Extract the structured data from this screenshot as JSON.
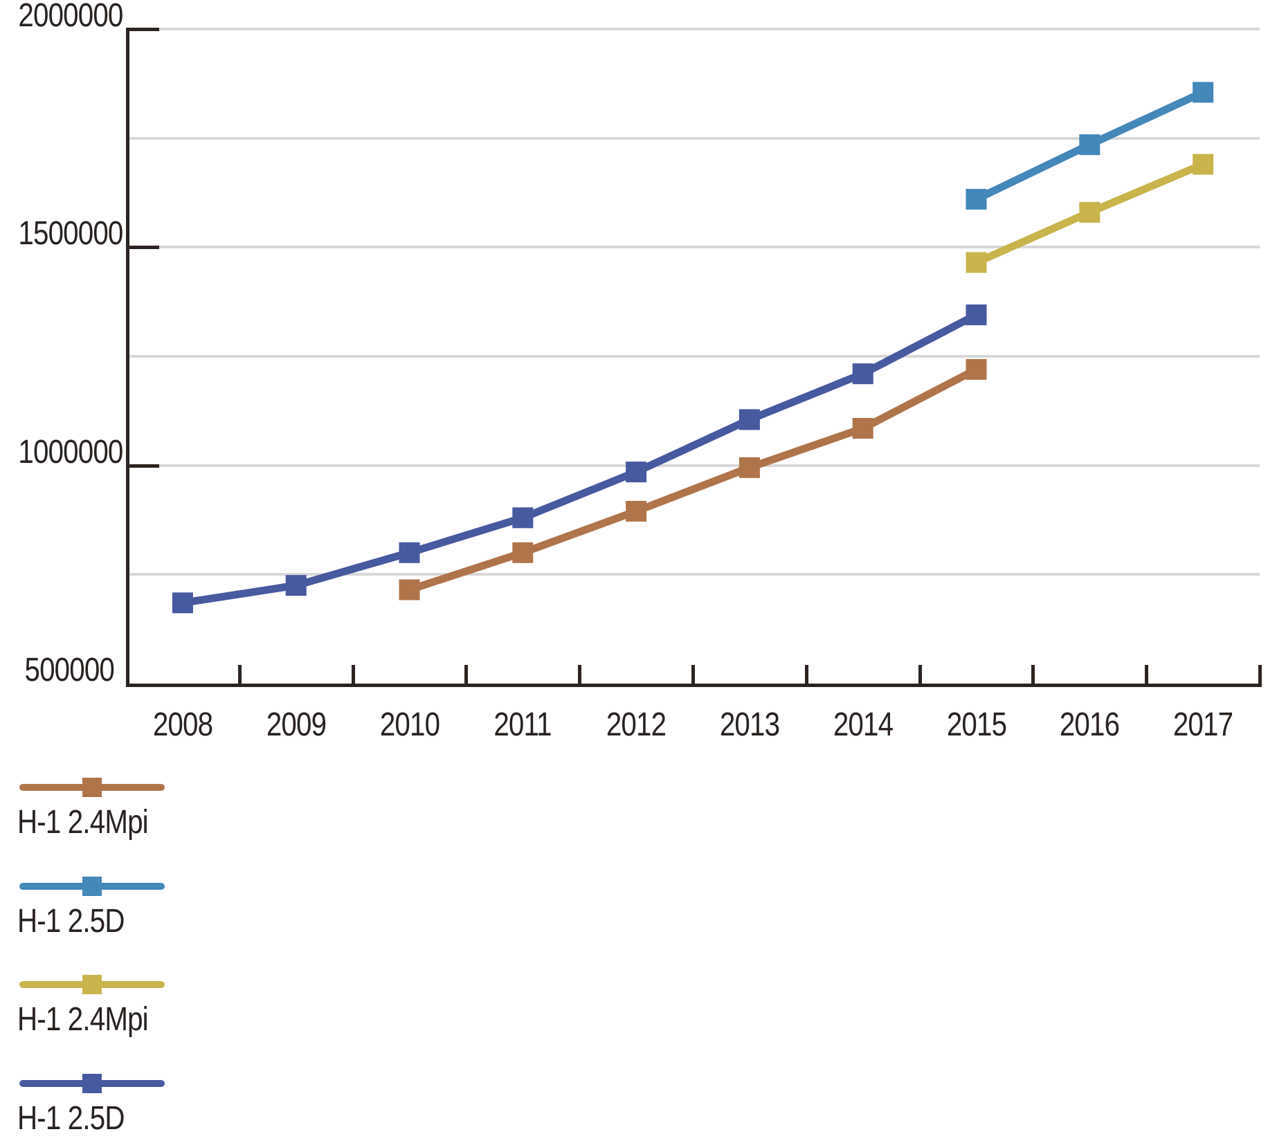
{
  "colors": {
    "background": "#ffffff",
    "axis": "#2b2420",
    "text": "#282220",
    "grid": "#d8d8d8"
  },
  "chart_data": {
    "type": "line",
    "title": "",
    "xlabel": "",
    "ylabel": "",
    "grid": true,
    "legend_position": "bottom-left",
    "marker": "square",
    "categories": [
      "2008",
      "2009",
      "2010",
      "2011",
      "2012",
      "2013",
      "2014",
      "2015",
      "2016",
      "2017"
    ],
    "ylim": [
      500000,
      2000000
    ],
    "y_gridline_step": 250000,
    "y_ticks": [
      {
        "value": 500000,
        "label": "500000"
      },
      {
        "value": 1000000,
        "label": "1000000"
      },
      {
        "value": 1500000,
        "label": "1500000"
      },
      {
        "value": 2000000,
        "label": "2000000"
      }
    ],
    "series": [
      {
        "name": "H-1 2.4Mpi",
        "color": "#b0744a",
        "points": {
          "2010": 715000,
          "2011": 800000,
          "2012": 895000,
          "2013": 995000,
          "2014": 1085000,
          "2015": 1220000
        }
      },
      {
        "name": "H-1 2.5D",
        "color": "#4487b9",
        "points": {
          "2015": 1610000,
          "2016": 1735000,
          "2017": 1855000
        }
      },
      {
        "name": "H-1 2.4Mpi",
        "color": "#c9b44c",
        "points": {
          "2015": 1465000,
          "2016": 1580000,
          "2017": 1690000
        }
      },
      {
        "name": "H-1 2.5D",
        "color": "#47599f",
        "points": {
          "2008": 685000,
          "2009": 725000,
          "2010": 800000,
          "2011": 880000,
          "2012": 985000,
          "2013": 1105000,
          "2014": 1210000,
          "2015": 1345000
        }
      }
    ]
  }
}
